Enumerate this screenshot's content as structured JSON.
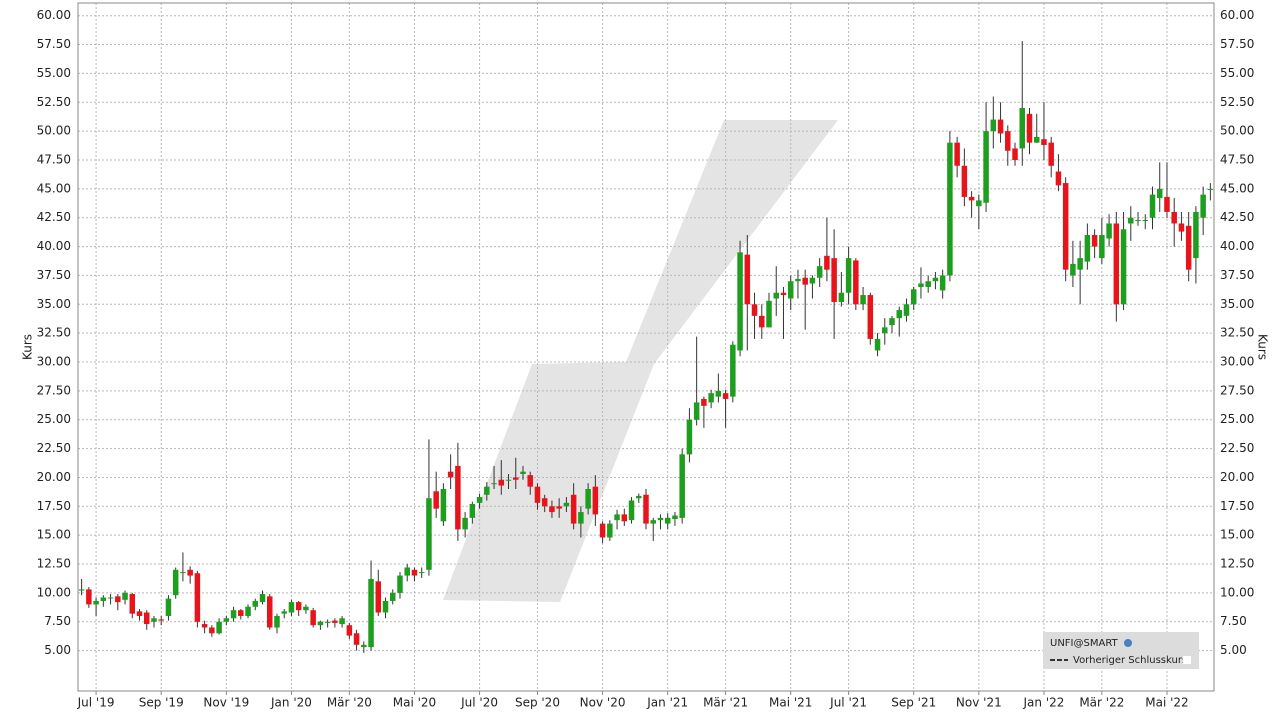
{
  "chart_data": {
    "type": "candlestick",
    "y_label": "Kurs",
    "up_color": "#1e9e1e",
    "down_color": "#e8141c",
    "wick_color": "#333333",
    "grid": true,
    "legend": [
      "UNFI@SMART",
      "Vorheriger Schlusskurs"
    ],
    "ylim": [
      1.5,
      61.1
    ],
    "yticks": [
      {
        "value": 5,
        "label": "5.00"
      },
      {
        "value": 7.5,
        "label": "7.50"
      },
      {
        "value": 10,
        "label": "10.00"
      },
      {
        "value": 12.5,
        "label": "12.50"
      },
      {
        "value": 15,
        "label": "15.00"
      },
      {
        "value": 17.5,
        "label": "17.50"
      },
      {
        "value": 20,
        "label": "20.00"
      },
      {
        "value": 22.5,
        "label": "22.50"
      },
      {
        "value": 25,
        "label": "25.00"
      },
      {
        "value": 27.5,
        "label": "27.50"
      },
      {
        "value": 30,
        "label": "30.00"
      },
      {
        "value": 32.5,
        "label": "32.50"
      },
      {
        "value": 35,
        "label": "35.00"
      },
      {
        "value": 37.5,
        "label": "37.50"
      },
      {
        "value": 40,
        "label": "40.00"
      },
      {
        "value": 42.5,
        "label": "42.50"
      },
      {
        "value": 45,
        "label": "45.00"
      },
      {
        "value": 47.5,
        "label": "47.50"
      },
      {
        "value": 50,
        "label": "50.00"
      },
      {
        "value": 52.5,
        "label": "52.50"
      },
      {
        "value": 55,
        "label": "55.00"
      },
      {
        "value": 57.5,
        "label": "57.50"
      },
      {
        "value": 60,
        "label": "60.00"
      }
    ],
    "categories": [
      null,
      null,
      "Jul '19",
      null,
      null,
      null,
      null,
      null,
      null,
      null,
      null,
      "Sep '19",
      null,
      null,
      null,
      null,
      null,
      null,
      null,
      null,
      "Nov '19",
      null,
      null,
      null,
      null,
      null,
      null,
      null,
      null,
      "Jan '20",
      null,
      null,
      null,
      null,
      null,
      null,
      null,
      "Mär '20",
      null,
      null,
      null,
      null,
      null,
      null,
      null,
      null,
      "Mai '20",
      null,
      null,
      null,
      null,
      null,
      null,
      null,
      null,
      "Jul '20",
      null,
      null,
      null,
      null,
      null,
      null,
      null,
      "Sep '20",
      null,
      null,
      null,
      null,
      null,
      null,
      null,
      null,
      "Nov '20",
      null,
      null,
      null,
      null,
      null,
      null,
      null,
      null,
      "Jan '21",
      null,
      null,
      null,
      null,
      null,
      null,
      null,
      "Mär '21",
      null,
      null,
      null,
      null,
      null,
      null,
      null,
      null,
      "Mai '21",
      null,
      null,
      null,
      null,
      null,
      null,
      null,
      "Jul '21",
      null,
      null,
      null,
      null,
      null,
      null,
      null,
      null,
      "Sep '21",
      null,
      null,
      null,
      null,
      null,
      null,
      null,
      null,
      "Nov '21",
      null,
      null,
      null,
      null,
      null,
      null,
      null,
      null,
      "Jan '22",
      null,
      null,
      null,
      null,
      null,
      null,
      null,
      "Mär '22",
      null,
      null,
      null,
      null,
      null,
      null,
      null,
      null,
      "Mai '22",
      null,
      null,
      null,
      null,
      null,
      null
    ],
    "open": [
      10.2,
      10.3,
      9.0,
      9.3,
      9.6,
      9.7,
      9.4,
      9.9,
      8.4,
      8.3,
      7.5,
      7.7,
      8.0,
      9.8,
      11.8,
      12.0,
      11.7,
      7.3,
      7.0,
      6.5,
      7.5,
      7.8,
      8.5,
      8.0,
      8.8,
      9.2,
      9.7,
      7.0,
      8.2,
      8.3,
      9.2,
      8.5,
      8.5,
      7.2,
      7.4,
      7.6,
      7.3,
      7.2,
      6.5,
      5.3,
      5.3,
      11.0,
      8.3,
      9.3,
      10.0,
      11.5,
      12.0,
      11.8,
      12.0,
      18.8,
      16.2,
      20.5,
      21.0,
      15.5,
      16.5,
      17.8,
      18.5,
      19.5,
      19.8,
      19.8,
      20.0,
      20.3,
      20.2,
      19.2,
      18.2,
      17.5,
      17.5,
      17.5,
      18.5,
      16.0,
      17.3,
      19.2,
      16.0,
      14.8,
      16.3,
      16.8,
      16.3,
      18.2,
      18.5,
      16.0,
      16.3,
      16.0,
      16.4,
      16.5,
      22.0,
      25.0,
      26.8,
      26.5,
      27.0,
      27.3,
      27.0,
      31.0,
      39.3,
      35.0,
      34.0,
      33.0,
      35.5,
      36.0,
      35.5,
      37.0,
      37.3,
      36.8,
      37.3,
      39.2,
      39.0,
      35.2,
      36.0,
      38.8,
      35.0,
      35.8,
      31.0,
      32.5,
      33.2,
      33.8,
      34.0,
      35.0,
      36.5,
      36.5,
      37.0,
      36.2,
      37.5,
      49.0,
      47.0,
      44.3,
      43.5,
      43.8,
      50.0,
      51.0,
      50.0,
      48.5,
      48.5,
      51.5,
      49.0,
      49.3,
      49.0,
      46.5,
      45.5,
      37.5,
      38.0,
      38.7,
      41.0,
      39.0,
      40.7,
      42.0,
      35.0,
      42.0,
      42.3,
      42.3,
      42.5,
      44.2,
      44.3,
      43.0,
      42.0,
      41.8,
      39.0,
      42.5,
      45.0
    ],
    "high": [
      11.2,
      10.5,
      9.6,
      9.8,
      9.9,
      9.9,
      10.2,
      10.0,
      8.6,
      8.5,
      8.0,
      8.0,
      9.8,
      12.2,
      13.5,
      12.3,
      11.9,
      7.6,
      7.2,
      7.8,
      8.0,
      8.8,
      8.6,
      9.0,
      9.5,
      10.2,
      9.9,
      8.2,
      8.6,
      9.4,
      9.3,
      9.0,
      8.7,
      7.6,
      7.7,
      7.8,
      8.0,
      7.4,
      6.8,
      5.8,
      12.8,
      12.0,
      9.6,
      10.3,
      11.8,
      12.5,
      12.2,
      12.2,
      23.3,
      20.5,
      19.5,
      22.0,
      23.0,
      17.0,
      17.9,
      18.6,
      19.6,
      21.0,
      21.5,
      20.3,
      21.7,
      21.0,
      20.5,
      19.5,
      18.5,
      18.0,
      18.2,
      18.3,
      19.5,
      17.5,
      19.5,
      20.2,
      16.2,
      16.3,
      17.2,
      17.3,
      18.3,
      18.6,
      19.0,
      16.5,
      16.8,
      16.9,
      17.0,
      22.5,
      26.0,
      32.2,
      27.0,
      27.6,
      29.0,
      27.6,
      31.8,
      40.5,
      41.0,
      36.0,
      35.0,
      36.0,
      38.3,
      36.5,
      37.5,
      38.0,
      38.0,
      37.5,
      39.0,
      42.5,
      41.5,
      37.8,
      40.0,
      39.0,
      36.5,
      36.0,
      32.5,
      33.8,
      34.0,
      34.8,
      35.5,
      36.5,
      38.2,
      37.5,
      37.8,
      38.0,
      50.0,
      49.5,
      48.5,
      44.8,
      44.5,
      52.5,
      53.0,
      52.5,
      50.5,
      49.0,
      57.8,
      52.0,
      51.5,
      52.5,
      49.5,
      48.0,
      46.0,
      40.5,
      40.5,
      42.0,
      41.5,
      42.5,
      42.8,
      43.0,
      43.0,
      43.5,
      43.0,
      42.8,
      45.2,
      47.3,
      47.3,
      44.2,
      43.0,
      43.0,
      43.5,
      45.2,
      45.5
    ],
    "low": [
      9.8,
      8.7,
      8.0,
      8.8,
      9.0,
      8.5,
      9.0,
      7.8,
      7.6,
      6.8,
      7.0,
      7.2,
      7.6,
      9.5,
      11.0,
      10.8,
      7.0,
      6.5,
      6.2,
      6.4,
      7.2,
      7.5,
      7.7,
      7.8,
      8.5,
      9.0,
      6.8,
      6.5,
      7.8,
      8.0,
      8.0,
      8.2,
      7.0,
      6.8,
      7.0,
      7.0,
      7.0,
      6.0,
      5.0,
      4.8,
      5.0,
      8.0,
      7.8,
      9.0,
      9.5,
      11.0,
      11.0,
      11.3,
      11.5,
      16.5,
      15.8,
      19.0,
      14.5,
      14.8,
      16.0,
      17.3,
      18.0,
      19.0,
      18.5,
      19.0,
      19.0,
      19.8,
      18.5,
      17.2,
      17.0,
      16.5,
      16.5,
      17.0,
      15.5,
      14.8,
      16.8,
      15.8,
      14.3,
      14.5,
      15.5,
      15.8,
      16.0,
      17.8,
      15.5,
      14.5,
      15.5,
      15.5,
      15.8,
      16.0,
      21.3,
      24.5,
      24.3,
      26.0,
      26.5,
      24.3,
      26.5,
      30.5,
      31.0,
      32.0,
      32.0,
      33.0,
      34.0,
      32.0,
      34.5,
      35.5,
      32.8,
      35.5,
      36.5,
      37.0,
      32.0,
      34.8,
      35.0,
      34.5,
      34.5,
      31.5,
      30.5,
      31.5,
      32.5,
      32.2,
      33.5,
      34.5,
      35.5,
      36.0,
      36.3,
      35.5,
      37.0,
      46.0,
      43.5,
      42.5,
      41.5,
      43.0,
      48.5,
      49.0,
      47.0,
      47.0,
      47.0,
      48.0,
      49.0,
      47.5,
      46.0,
      44.8,
      37.0,
      36.5,
      35.0,
      38.0,
      39.0,
      38.5,
      40.0,
      33.5,
      34.5,
      40.5,
      41.8,
      41.5,
      41.5,
      43.0,
      42.5,
      40.0,
      40.5,
      37.0,
      36.8,
      41.0,
      44.0
    ],
    "close": [
      10.3,
      9.0,
      9.3,
      9.6,
      9.6,
      9.2,
      10.0,
      8.2,
      8.0,
      7.3,
      7.8,
      7.6,
      9.5,
      12.0,
      11.8,
      11.5,
      7.5,
      7.0,
      6.5,
      7.5,
      7.8,
      8.5,
      8.0,
      8.8,
      9.3,
      9.9,
      7.0,
      8.0,
      8.4,
      9.2,
      8.5,
      8.8,
      7.2,
      7.5,
      7.5,
      7.4,
      7.8,
      6.3,
      5.5,
      5.5,
      11.2,
      8.3,
      9.3,
      10.0,
      11.5,
      12.2,
      11.5,
      11.8,
      18.2,
      17.3,
      19.0,
      20.0,
      15.5,
      16.5,
      17.7,
      18.3,
      19.2,
      19.5,
      19.3,
      19.8,
      19.8,
      20.5,
      19.2,
      17.8,
      17.5,
      17.0,
      17.3,
      17.8,
      16.0,
      17.0,
      19.0,
      16.8,
      14.8,
      16.0,
      16.8,
      16.2,
      18.0,
      18.4,
      16.0,
      16.3,
      16.5,
      16.5,
      16.7,
      22.0,
      25.0,
      26.5,
      26.2,
      27.3,
      27.5,
      26.8,
      31.5,
      39.5,
      35.0,
      34.0,
      33.0,
      35.3,
      36.0,
      35.8,
      37.0,
      37.2,
      36.7,
      37.3,
      38.3,
      38.0,
      35.2,
      36.0,
      39.0,
      35.0,
      35.8,
      32.0,
      32.0,
      33.0,
      33.8,
      34.5,
      35.0,
      36.3,
      36.8,
      37.0,
      37.3,
      37.5,
      49.0,
      47.0,
      44.3,
      44.0,
      44.0,
      50.0,
      51.0,
      49.8,
      48.3,
      47.5,
      52.0,
      49.0,
      49.5,
      48.8,
      47.0,
      45.3,
      38.0,
      38.5,
      39.0,
      41.0,
      40.0,
      41.0,
      42.0,
      35.0,
      41.5,
      42.5,
      42.3,
      42.3,
      44.5,
      45.0,
      43.0,
      42.0,
      41.3,
      38.0,
      43.0,
      44.5,
      45.0
    ]
  }
}
